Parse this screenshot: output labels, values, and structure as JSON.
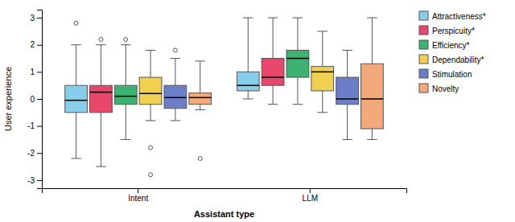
{
  "chart_data": {
    "type": "box",
    "xlabel": "Assistant type",
    "ylabel": "User experience",
    "categories": [
      "Intent",
      "LLM"
    ],
    "ylim": [
      -3.3,
      3.3
    ],
    "yticks": [
      -3,
      -2,
      -1,
      0,
      1,
      2,
      3
    ],
    "grid": false,
    "legend": "right",
    "series": [
      {
        "name": "Attractiveness*",
        "color": "#87CEEB",
        "values": [
          {
            "whislo": -2.2,
            "q1": -0.5,
            "med": -0.05,
            "q3": 0.5,
            "whishi": 2.0,
            "fliers": [
              2.8
            ]
          },
          {
            "whislo": 0.0,
            "q1": 0.3,
            "med": 0.5,
            "q3": 1.0,
            "whishi": 3.0,
            "fliers": []
          }
        ]
      },
      {
        "name": "Perspicuity*",
        "color": "#E8466A",
        "values": [
          {
            "whislo": -2.5,
            "q1": -0.5,
            "med": 0.25,
            "q3": 0.5,
            "whishi": 2.0,
            "fliers": [
              2.2
            ]
          },
          {
            "whislo": -0.2,
            "q1": 0.5,
            "med": 0.8,
            "q3": 1.5,
            "whishi": 3.0,
            "fliers": []
          }
        ]
      },
      {
        "name": "Efficiency*",
        "color": "#3CB371",
        "values": [
          {
            "whislo": -1.5,
            "q1": -0.2,
            "med": 0.1,
            "q3": 0.5,
            "whishi": 2.0,
            "fliers": [
              2.2
            ]
          },
          {
            "whislo": -0.2,
            "q1": 0.8,
            "med": 1.5,
            "q3": 1.8,
            "whishi": 3.0,
            "fliers": []
          }
        ]
      },
      {
        "name": "Dependability*",
        "color": "#F0D050",
        "values": [
          {
            "whislo": -0.8,
            "q1": -0.2,
            "med": 0.2,
            "q3": 0.8,
            "whishi": 1.8,
            "fliers": [
              -1.8,
              -2.8
            ]
          },
          {
            "whislo": -0.5,
            "q1": 0.3,
            "med": 1.0,
            "q3": 1.2,
            "whishi": 2.5,
            "fliers": []
          }
        ]
      },
      {
        "name": "Stimulation",
        "color": "#6B7EC8",
        "values": [
          {
            "whislo": -0.8,
            "q1": -0.35,
            "med": 0.05,
            "q3": 0.5,
            "whishi": 1.5,
            "fliers": [
              1.8
            ]
          },
          {
            "whislo": -1.5,
            "q1": -0.2,
            "med": 0.0,
            "q3": 0.8,
            "whishi": 1.8,
            "fliers": []
          }
        ]
      },
      {
        "name": "Novelty",
        "color": "#F4A97A",
        "values": [
          {
            "whislo": -0.4,
            "q1": -0.2,
            "med": 0.05,
            "q3": 0.22,
            "whishi": 1.4,
            "fliers": [
              -2.2
            ]
          },
          {
            "whislo": -1.5,
            "q1": -1.1,
            "med": 0.0,
            "q3": 1.3,
            "whishi": 3.0,
            "fliers": []
          }
        ]
      }
    ]
  }
}
